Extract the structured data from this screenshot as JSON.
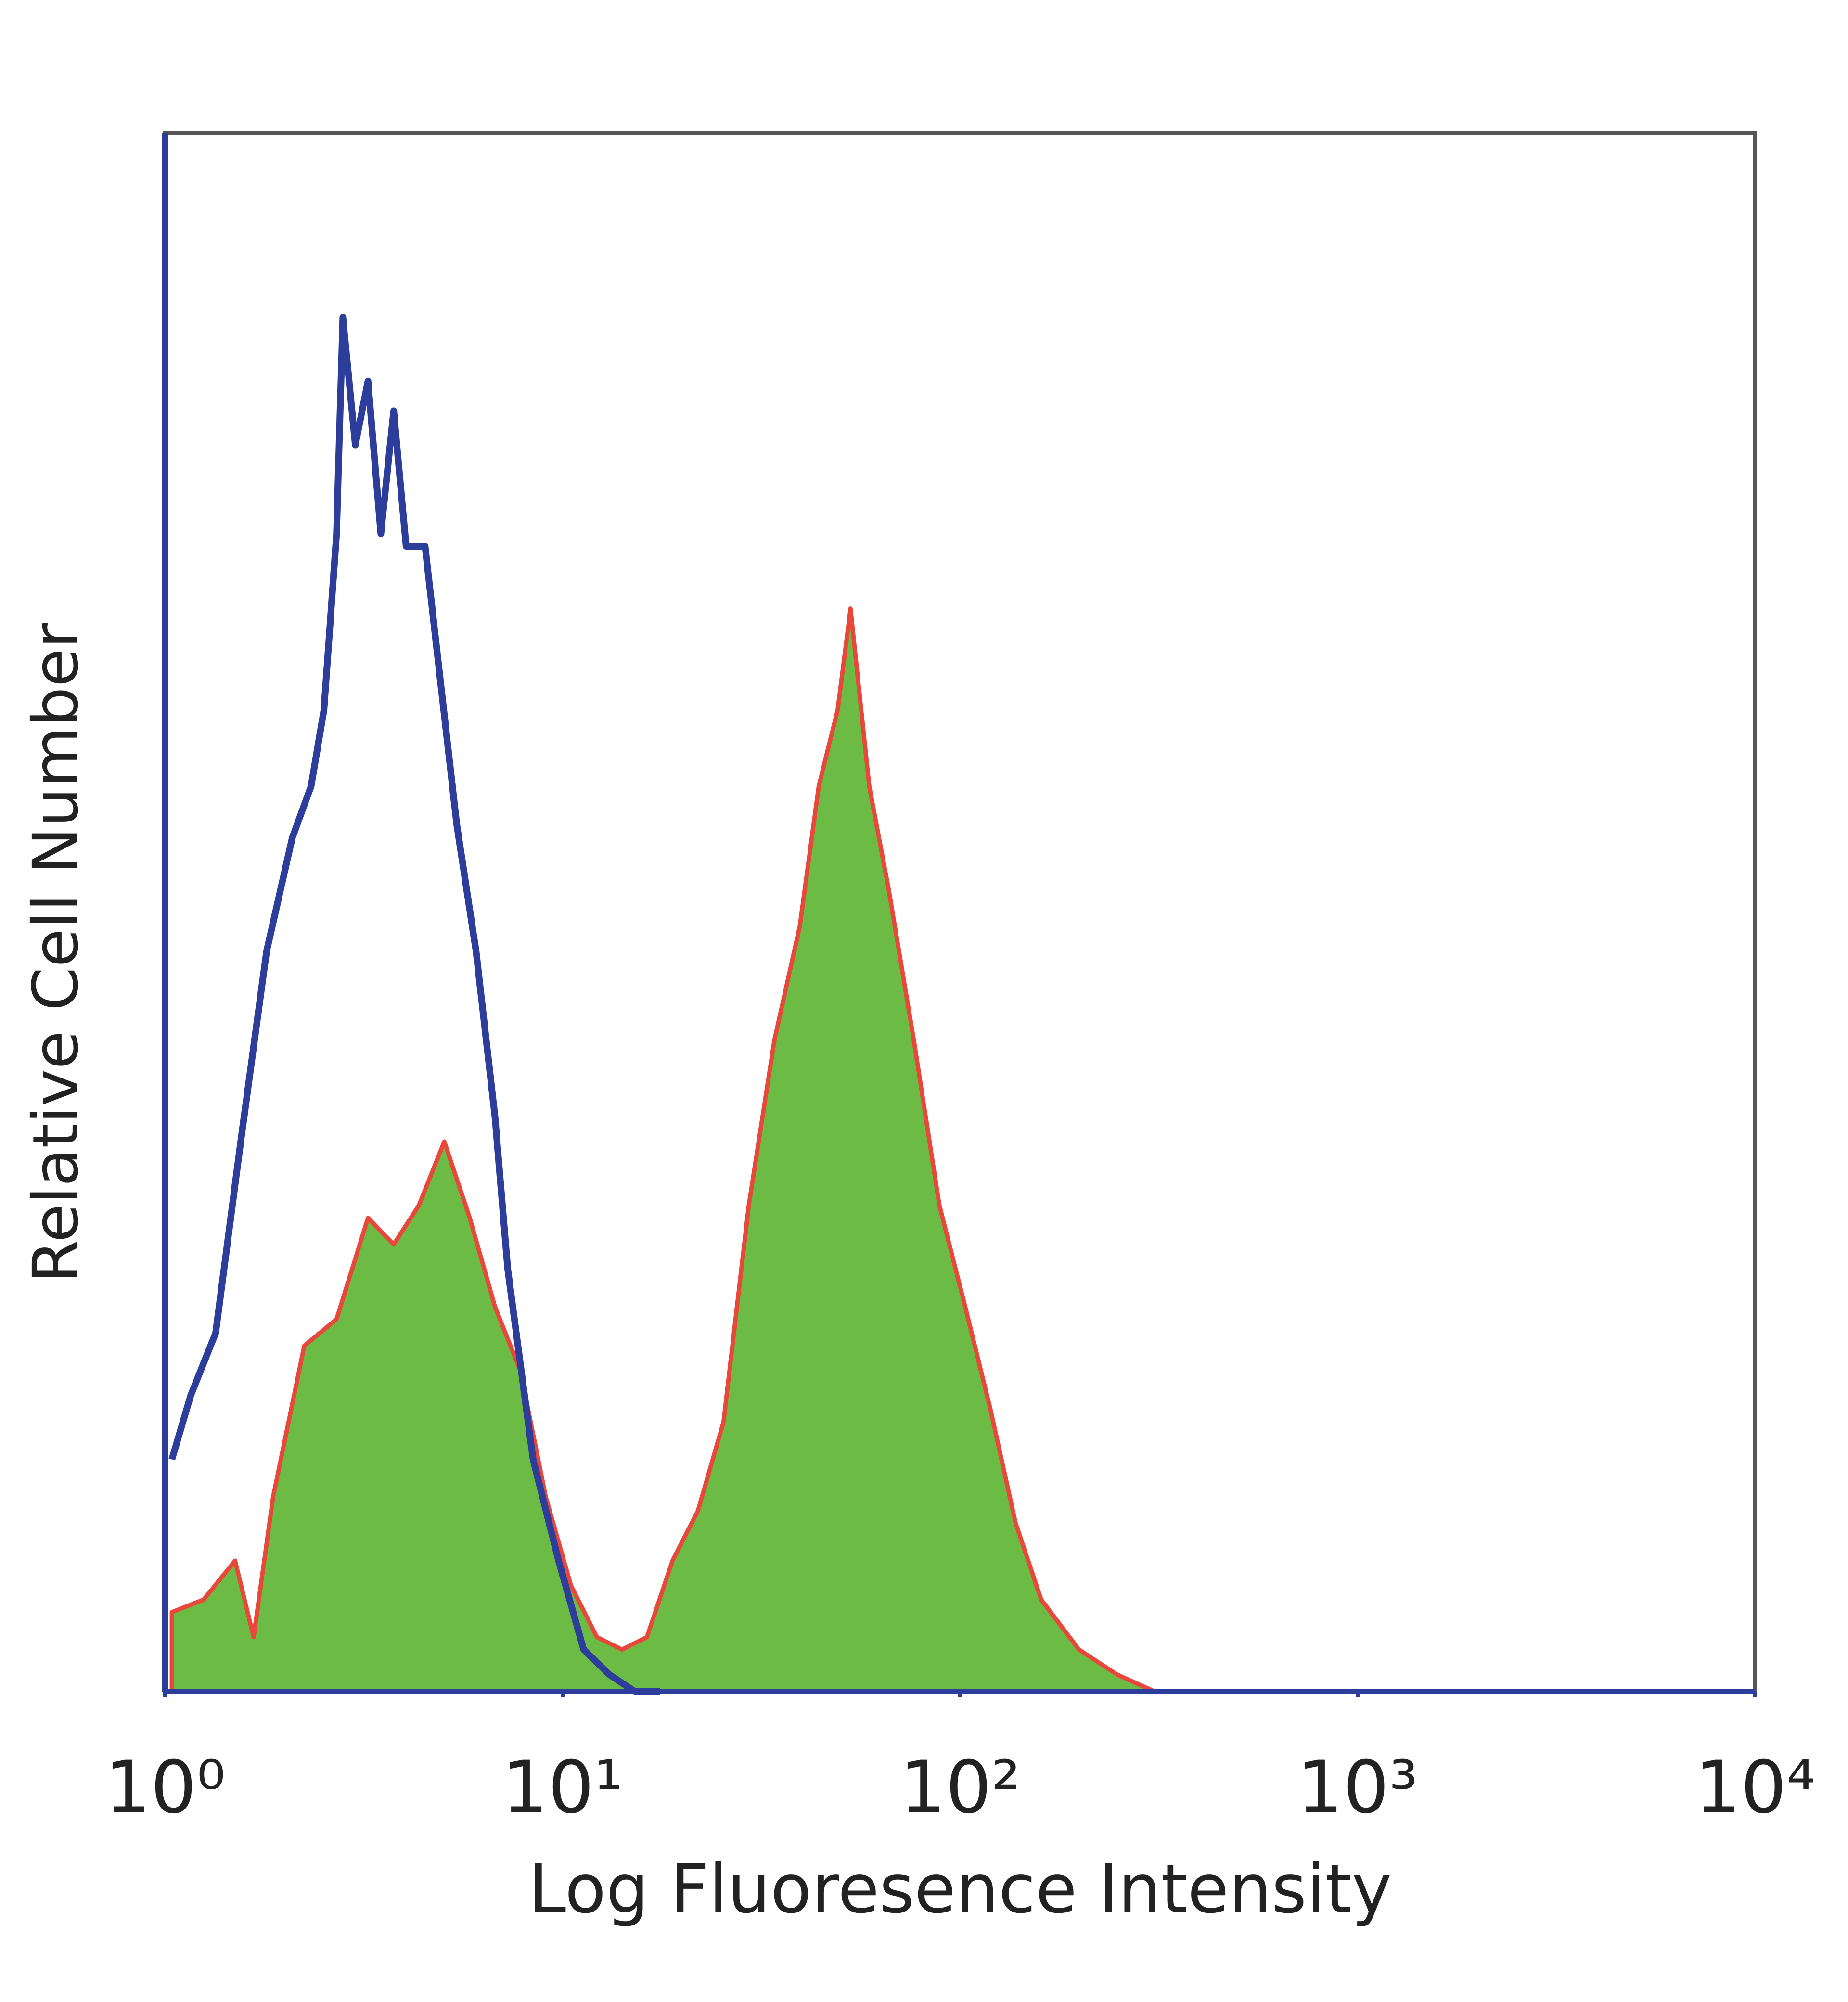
{
  "chart_data": {
    "type": "histogram-overlay",
    "x_label": "Log Fluoresence Intensity",
    "y_label": "Relative Cell Number",
    "xscale": "log",
    "xlim": [
      1,
      10000
    ],
    "ylim": [
      0,
      100
    ],
    "xticks": [
      {
        "value": 1,
        "label": "10⁰"
      },
      {
        "value": 10,
        "label": "10¹"
      },
      {
        "value": 100,
        "label": "10²"
      },
      {
        "value": 1000,
        "label": "10³"
      },
      {
        "value": 10000,
        "label": "10⁴"
      }
    ],
    "series": [
      {
        "style": "area",
        "color": "#6cbb45",
        "edgecolor": "#e8473a",
        "x": [
          1.04,
          1.25,
          1.5,
          1.67,
          1.87,
          2.24,
          2.7,
          3.24,
          3.76,
          4.35,
          5.04,
          5.84,
          6.76,
          7.83,
          9.07,
          10.5,
          12.2,
          14.1,
          16.3,
          18.9,
          21.9,
          25.4,
          29.4,
          34.1,
          39.5,
          44.1,
          49.2,
          53.0,
          59.1,
          66.1,
          76.5,
          88.7,
          103,
          119,
          138,
          160,
          199,
          248,
          309,
          400
        ],
        "values": [
          5.1,
          5.9,
          8.4,
          3.5,
          12.5,
          22.2,
          23.9,
          30.4,
          28.7,
          31.2,
          35.3,
          30.4,
          24.7,
          20.6,
          12.5,
          6.8,
          3.5,
          2.7,
          3.5,
          8.4,
          11.6,
          17.3,
          31.2,
          41.8,
          49.1,
          58.1,
          63.0,
          69.5,
          58.1,
          51.5,
          41.8,
          31.2,
          24.7,
          18.2,
          10.8,
          5.9,
          2.7,
          1.1,
          0,
          0
        ]
      },
      {
        "style": "line",
        "color": "#2d3d9c",
        "x": [
          1.04,
          1.16,
          1.34,
          1.55,
          1.8,
          2.09,
          2.33,
          2.51,
          2.7,
          2.8,
          3.01,
          3.24,
          3.49,
          3.76,
          4.04,
          4.51,
          4.86,
          5.42,
          6.06,
          6.76,
          7.28,
          8.43,
          9.77,
          11.3,
          13.1,
          15.2,
          17.6
        ],
        "values": [
          14.9,
          19.0,
          23.0,
          35.3,
          47.5,
          54.8,
          58.1,
          63.0,
          74.3,
          88.2,
          80.0,
          84.1,
          74.3,
          82.2,
          73.5,
          73.5,
          66.2,
          55.6,
          47.5,
          36.9,
          27.1,
          14.9,
          8.4,
          2.7,
          1.1,
          0,
          0
        ]
      }
    ]
  }
}
